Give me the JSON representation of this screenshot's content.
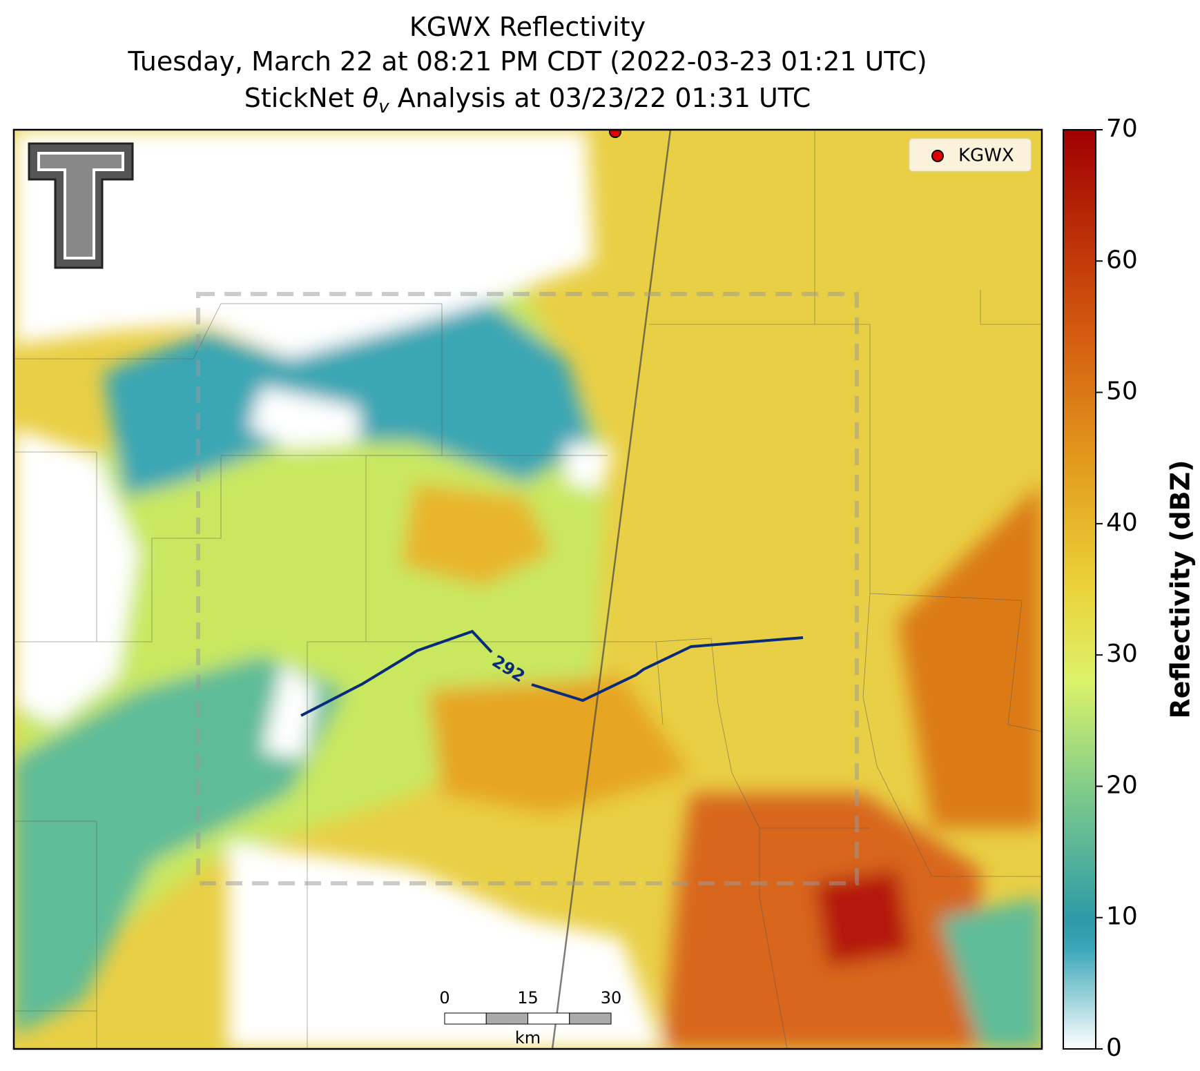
{
  "chart_data": {
    "type": "radar-map",
    "title_lines": [
      "KGWX Reflectivity",
      "Tuesday, March 22 at 08:21 PM CDT (2022-03-23 01:21 UTC)"
    ],
    "subtitle_parts": [
      "StickNet ",
      "θ",
      "v",
      " Analysis at 03/23/22 01:31 UTC"
    ],
    "legend": {
      "entries": [
        "KGWX"
      ],
      "loc": "upper right",
      "color": "#e00000"
    },
    "contour": {
      "level": 292,
      "color": "#0a2a7a"
    },
    "colorbar": {
      "label": "Reflectivity (dBZ)",
      "ylim": [
        0,
        70
      ],
      "yticks": [
        0,
        10,
        20,
        30,
        40,
        50,
        60,
        70
      ]
    },
    "scale_bar": {
      "ticks": [
        0,
        15,
        30
      ],
      "unit": "km"
    }
  }
}
